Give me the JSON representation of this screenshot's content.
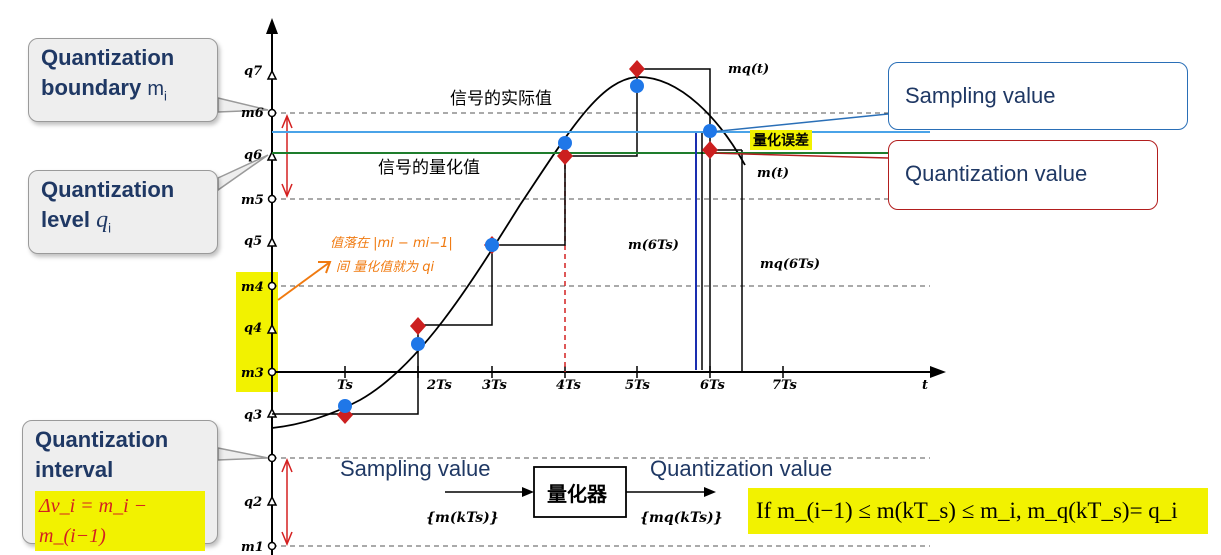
{
  "callouts": {
    "boundary": {
      "line1": "Quantization",
      "line2": "boundary",
      "sym": "m",
      "sub": "i"
    },
    "level": {
      "line1": "Quantization",
      "line2": "level",
      "sym": "q",
      "sub": "i"
    },
    "interval": {
      "line1": "Quantization",
      "line2": "interval",
      "formula": "Δv_i = m_i − m_(i−1)"
    }
  },
  "right_boxes": {
    "sampling": "Sampling value",
    "quantization": "Quantization value"
  },
  "bottom": {
    "sampling_label": "Sampling value",
    "quantization_label": "Quantization value",
    "quantizer_box": "量化器",
    "input": "{m(kTs)}",
    "output": "{mq(kTs)}",
    "condition": "If m_(i−1) ≤ m(kT_s) ≤ m_i, m_q(kT_s)= q_i"
  },
  "annotations": {
    "actual_value": "信号的实际值",
    "quantized_value": "信号的量化值",
    "error": "量化误差",
    "mq_t": "mq(t)",
    "m_t": "m(t)",
    "m_6ts": "m(6Ts)",
    "mq_6ts": "mq(6Ts)",
    "handwritten_1": "值落在 |mi − mi−1|",
    "handwritten_2": "间 量化值就为 qi"
  },
  "y_axis_labels": [
    "q7",
    "m6",
    "q6",
    "m5",
    "q5",
    "m4",
    "q4",
    "m3",
    "q3",
    "q2",
    "m1"
  ],
  "x_axis_labels": [
    "Ts",
    "2Ts",
    "3Ts",
    "4Ts",
    "5Ts",
    "6Ts",
    "7Ts",
    "t"
  ],
  "colors": {
    "sample_dot": "#1f77e8",
    "quant_dot": "#cc1f1f",
    "sampling_line": "#4aa3e8",
    "quant_line": "#1e7d2c",
    "highlight": "#f2f200",
    "callout_text": "#1f3864"
  }
}
